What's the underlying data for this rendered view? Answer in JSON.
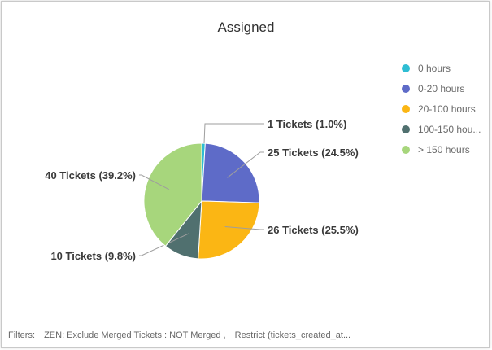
{
  "chart_data": {
    "type": "pie",
    "title": "Assigned",
    "slices": [
      {
        "label": "0 hours",
        "tickets": 1,
        "percent": 1.0,
        "data_label": "1 Tickets (1.0%)",
        "color": "#2ebdd3"
      },
      {
        "label": "0-20 hours",
        "tickets": 25,
        "percent": 24.5,
        "data_label": "25 Tickets (24.5%)",
        "color": "#5e6bc8"
      },
      {
        "label": "20-100 hours",
        "tickets": 26,
        "percent": 25.5,
        "data_label": "26 Tickets (25.5%)",
        "color": "#fbb614"
      },
      {
        "label": "100-150 hou...",
        "tickets": 10,
        "percent": 9.8,
        "data_label": "10 Tickets (9.8%)",
        "color": "#50706f"
      },
      {
        "label": "> 150 hours",
        "tickets": 40,
        "percent": 39.2,
        "data_label": "40 Tickets (39.2%)",
        "color": "#a7d67c"
      }
    ],
    "legend_position": "right"
  },
  "filters": {
    "label": "Filters:",
    "items": [
      "ZEN: Exclude Merged Tickets : NOT Merged ,",
      "Restrict (tickets_created_at..."
    ]
  }
}
